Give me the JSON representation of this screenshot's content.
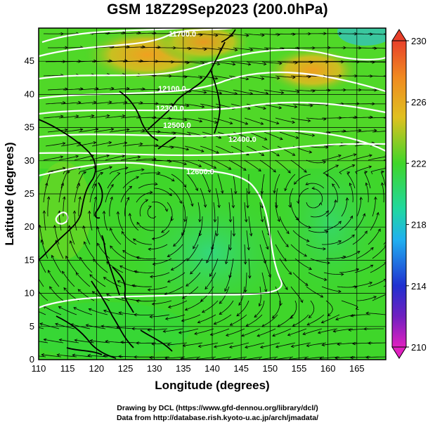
{
  "title": "GSM 18Z29Sep2023 (200.0hPa)",
  "xlabel": "Longitude (degrees)",
  "ylabel": "Latitude (degrees)",
  "x_ticks": [
    "110",
    "115",
    "120",
    "125",
    "130",
    "135",
    "140",
    "145",
    "150",
    "155",
    "160",
    "165"
  ],
  "y_ticks": [
    "0",
    "5",
    "10",
    "15",
    "20",
    "25",
    "30",
    "35",
    "40",
    "45"
  ],
  "colorbar_ticks": [
    "230",
    "226",
    "222",
    "218",
    "214",
    "210"
  ],
  "contour_labels": [
    "11700.0",
    "12100.0",
    "12300.0",
    "12400.0",
    "12500.0",
    "12600.0"
  ],
  "footer_line1": "Drawing by DCL (https://www.gfd-dennou.org/library/dcl/)",
  "footer_line2": "Data from http://database.rish.kyoto-u.ac.jp/arch/jmadata/",
  "colors": {
    "background_green": "#3fd62a",
    "warm": "#f0a020",
    "contour": "#ffffff",
    "coast": "#000000"
  },
  "chart_data": {
    "type": "heatmap",
    "x_range": [
      110,
      170
    ],
    "y_range": [
      0,
      50
    ],
    "colorbar_range": [
      210,
      230
    ],
    "streamlines": true,
    "coastlines": true
  }
}
